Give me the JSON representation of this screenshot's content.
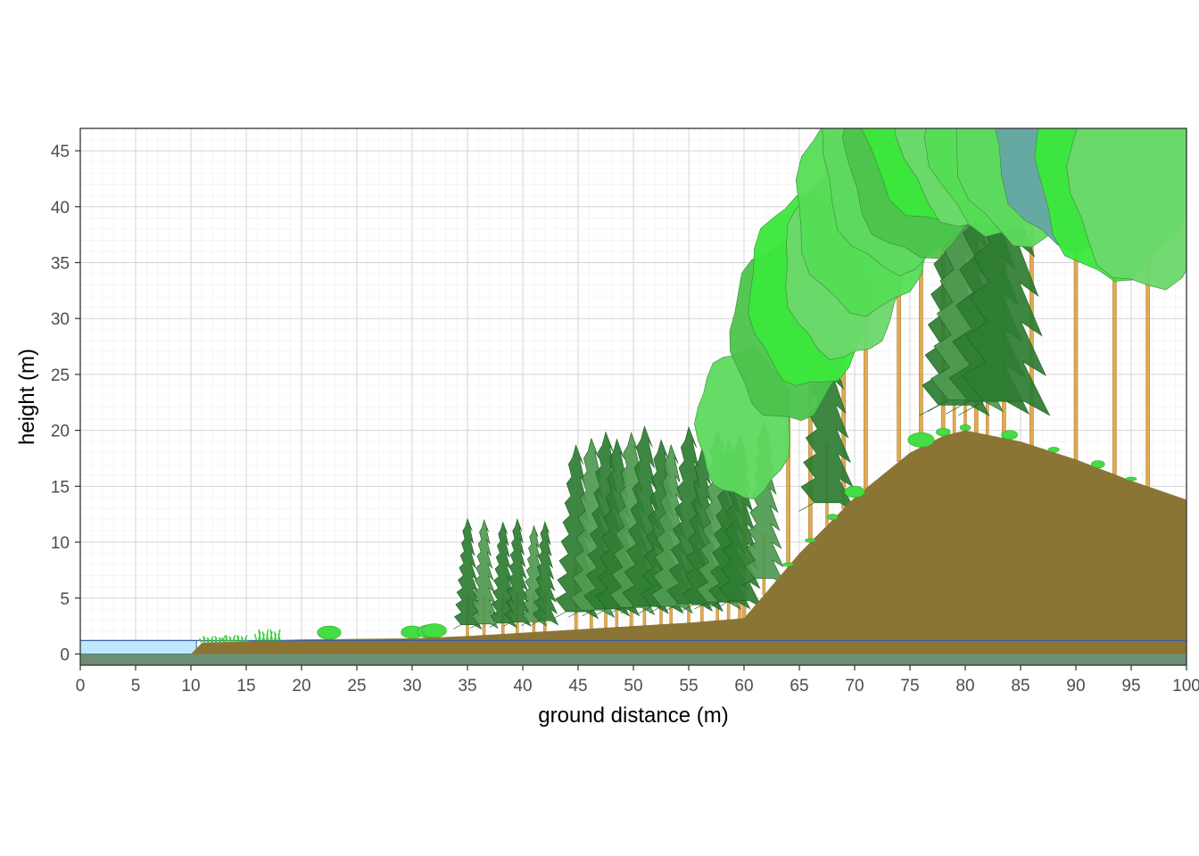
{
  "chart_data": {
    "type": "area",
    "title": "",
    "xlabel": "ground distance (m)",
    "ylabel": "height (m)",
    "xlim": [
      0,
      100
    ],
    "ylim": [
      -1,
      47
    ],
    "x_ticks": [
      0,
      5,
      10,
      15,
      20,
      25,
      30,
      35,
      40,
      45,
      50,
      55,
      60,
      65,
      70,
      75,
      80,
      85,
      90,
      95,
      100
    ],
    "y_ticks": [
      0,
      5,
      10,
      15,
      20,
      25,
      30,
      35,
      40,
      45
    ],
    "grid": true,
    "colors": {
      "ground": "#8B7535",
      "water": "#BFE8FF",
      "water_line": "#3A5FA8",
      "bedrock": "#6E8E74",
      "trunk": "#E0AA55",
      "conifer": "#2E7D32",
      "conifer_light": "#4E9A50",
      "broadleaf": [
        "#5ED95E",
        "#4CC44C",
        "#3BE83B",
        "#6CD86C",
        "#55DD55"
      ],
      "broadleaf_blue": "#66A6A6",
      "grass": "#33CC33",
      "shrub": "#44DD44"
    },
    "series": [
      {
        "name": "",
        "kind": "terrain",
        "x": [
          0,
          10,
          11,
          20,
          30,
          35,
          45,
          55,
          60,
          62,
          65,
          70,
          75,
          78,
          80,
          85,
          90,
          95,
          100
        ],
        "y": [
          0,
          0,
          1,
          1.3,
          1.4,
          1.6,
          2.2,
          2.8,
          3.2,
          5.5,
          9,
          14,
          18,
          19.5,
          20,
          19,
          17.4,
          15.5,
          13.8
        ]
      },
      {
        "name": "",
        "kind": "water_level",
        "x": [
          0,
          100
        ],
        "y": [
          1.2,
          1.2
        ]
      },
      {
        "name": "",
        "kind": "conifer_trees",
        "x": [
          35,
          36.5,
          38.2,
          39.5,
          41,
          42,
          44.8,
          46.2,
          47.5,
          48.5,
          49.8,
          51,
          52.5,
          53.4,
          55,
          56.2,
          57.6,
          58.6,
          59.6,
          61.8,
          67.5,
          79,
          80,
          82,
          83.5
        ],
        "height": [
          10.5,
          10.3,
          10,
          10.2,
          9.5,
          9.8,
          16.5,
          17,
          17.5,
          16.8,
          17.3,
          17.8,
          16.5,
          16,
          17.5,
          15.5,
          17,
          16,
          16.5,
          15.5,
          21,
          26,
          28,
          31,
          34
        ]
      },
      {
        "name": "",
        "kind": "broadleaf_trees",
        "x": [
          60,
          64,
          66,
          69,
          71,
          74,
          76,
          78,
          81,
          83.5,
          86,
          90,
          93.5,
          96.5
        ],
        "height": [
          24,
          29,
          31,
          30,
          35,
          38,
          38,
          42,
          40.5,
          40.5,
          40,
          42,
          39,
          39.5
        ]
      },
      {
        "name": "",
        "kind": "shrubs_grass",
        "x": [
          12,
          14,
          17,
          22.5,
          30,
          31.5,
          32,
          64,
          66,
          68,
          70,
          76,
          78,
          80,
          84,
          88,
          92,
          95
        ],
        "height": [
          1.6,
          1.7,
          2.2,
          2.5,
          2.5,
          2.6,
          2.7,
          7.5,
          9.8,
          12.5,
          15,
          19.8,
          20.2,
          20.5,
          20,
          18.5,
          17.3,
          15.6
        ]
      }
    ]
  }
}
